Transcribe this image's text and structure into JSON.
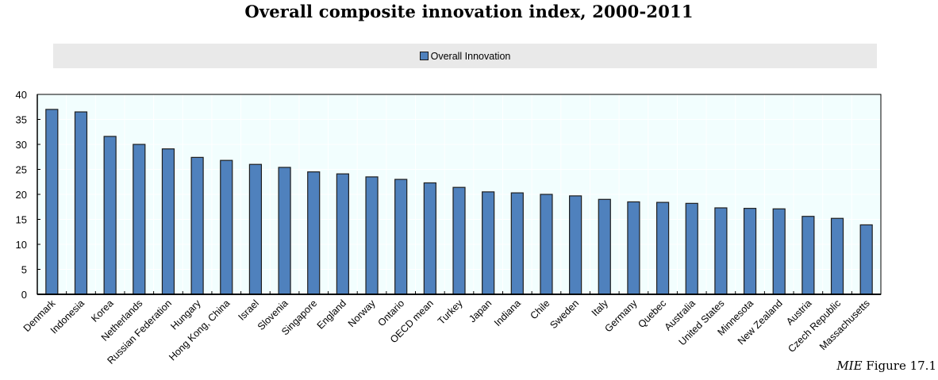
{
  "chart_data": {
    "type": "bar",
    "title": "Overall composite innovation index, 2000-2011",
    "xlabel": "",
    "ylabel": "",
    "ylim": [
      0,
      40
    ],
    "yticks": [
      0,
      5,
      10,
      15,
      20,
      25,
      30,
      35,
      40
    ],
    "grid": true,
    "legend_position": "top-center",
    "categories": [
      "Denmark",
      "Indonesia",
      "Korea",
      "Netherlands",
      "Russian Federation",
      "Hungary",
      "Hong Kong, China",
      "Israel",
      "Slovenia",
      "Singapore",
      "England",
      "Norway",
      "Ontario",
      "OECD mean",
      "Turkey",
      "Japan",
      "Indiana",
      "Chile",
      "Sweden",
      "Italy",
      "Germany",
      "Quebec",
      "Australia",
      "United States",
      "Minnesota",
      "New Zealand",
      "Austria",
      "Czech Republic",
      "Massachusetts"
    ],
    "series": [
      {
        "name": "Overall Innovation",
        "color": "#4f81bd",
        "values": [
          37.0,
          36.5,
          31.6,
          30.0,
          29.1,
          27.4,
          26.8,
          26.0,
          25.4,
          24.5,
          24.1,
          23.5,
          23.0,
          22.3,
          21.4,
          20.5,
          20.3,
          20.0,
          19.7,
          19.0,
          18.5,
          18.4,
          18.2,
          17.3,
          17.2,
          17.1,
          15.6,
          15.2,
          13.9
        ]
      }
    ]
  },
  "legend": {
    "label": "Overall Innovation"
  },
  "caption": {
    "italic": "MIE",
    "rest": " Figure 17.1"
  },
  "colors": {
    "bar": "#4f81bd",
    "bar_border": "#1f1f1f",
    "plot_bg": "#f2fefe",
    "legend_bg": "#e9e9e9"
  }
}
